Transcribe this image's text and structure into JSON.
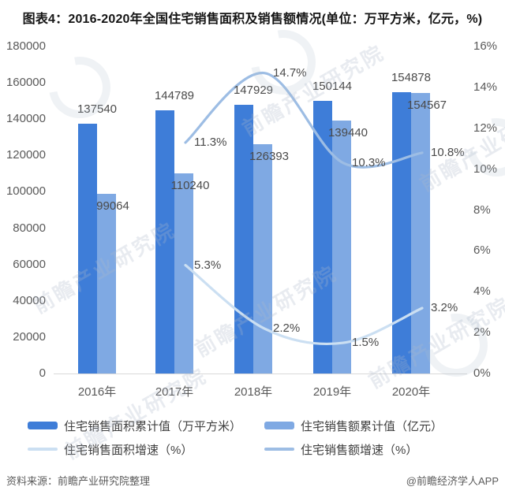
{
  "title": "图表4：2016-2020年全国住宅销售面积及销售额情况(单位：万平方米，亿元，%)",
  "footer": {
    "source": "资料来源：前瞻产业研究院整理",
    "credit": "@前瞻经济学人APP"
  },
  "watermark_text": "前瞻产业研究院",
  "colors": {
    "bar_area": "#3e7dd8",
    "bar_amount": "#7fa9e3",
    "line_area_growth": "#cbdff2",
    "line_amount_growth": "#9dbde4",
    "axis_text": "#595959",
    "label_text": "#4a4a4a"
  },
  "chart_data": {
    "type": "combo_bar_line",
    "categories": [
      "2016年",
      "2017年",
      "2018年",
      "2019年",
      "2020年"
    ],
    "series": [
      {
        "name": "住宅销售面积累计值（万平方米）",
        "type": "bar",
        "axis": "left",
        "values": [
          137540,
          144789,
          147929,
          150144,
          154878
        ],
        "labels": [
          "137540",
          "144789",
          "147929",
          "150144",
          "154878"
        ]
      },
      {
        "name": "住宅销售额累计值（亿元）",
        "type": "bar",
        "axis": "left",
        "values": [
          99064,
          110240,
          126393,
          139440,
          154567
        ],
        "labels": [
          "99064",
          "110240",
          "126393",
          "139440",
          "154567"
        ]
      },
      {
        "name": "住宅销售面积增速（%）",
        "type": "line",
        "axis": "right",
        "values": [
          null,
          5.3,
          2.2,
          1.5,
          3.2
        ],
        "labels": [
          null,
          "5.3%",
          "2.2%",
          "1.5%",
          "3.2%"
        ]
      },
      {
        "name": "住宅销售额增速（%）",
        "type": "line",
        "axis": "right",
        "values": [
          null,
          11.3,
          14.7,
          10.3,
          10.8
        ],
        "labels": [
          null,
          "11.3%",
          "14.7%",
          "10.3%",
          "10.8%"
        ]
      }
    ],
    "axes": {
      "left": {
        "min": 0,
        "max": 180000,
        "ticks": [
          "180000",
          "160000",
          "140000",
          "120000",
          "100000",
          "80000",
          "60000",
          "40000",
          "20000",
          "0"
        ]
      },
      "right": {
        "min": 0,
        "max": 16,
        "ticks": [
          "16%",
          "14%",
          "12%",
          "10%",
          "8%",
          "6%",
          "4%",
          "2%",
          "0%"
        ]
      }
    },
    "grid": "off",
    "legend_position": "bottom"
  }
}
